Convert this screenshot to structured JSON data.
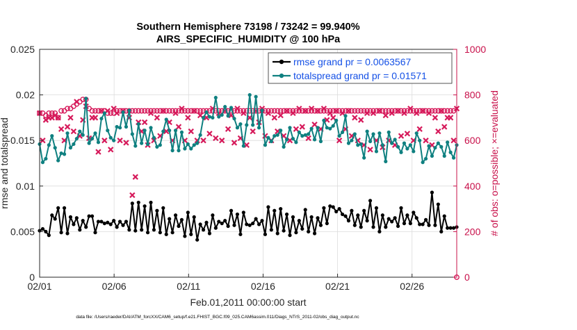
{
  "chart_data": {
    "type": "line",
    "title_line1": "Southern Hemisphere 73198 / 73242 = 99.940%",
    "title_line2": "AIRS_SPECIFIC_HUMIDITY @ 100 hPa",
    "xlabel": "Feb.01,2011 00:00:00 start",
    "ylabel_left": "rmse and totalspread",
    "ylabel_right": "# of obs: o=possible; ×=evaluated",
    "footer": "data file: /Users/raeder/DAI/ATM_forcXX/CAM6_setup/f.e21.FHIST_BGC.f09_025.CAM6assim.011/Diags_NTrS_2011-02/obs_diag_output.nc",
    "x_ticks": [
      "02/01",
      "02/06",
      "02/11",
      "02/16",
      "02/21",
      "02/26"
    ],
    "x_tick_days": [
      0,
      5,
      10,
      15,
      20,
      25
    ],
    "xlim": [
      0,
      28
    ],
    "y_left_ticks": [
      "0",
      "0.005",
      "0.01",
      "0.015",
      "0.02",
      "0.025"
    ],
    "ylim_left": [
      0,
      0.025
    ],
    "y_right_ticks": [
      "0",
      "200",
      "400",
      "600",
      "800",
      "1000"
    ],
    "ylim_right": [
      0,
      1000
    ],
    "grid": true,
    "legend_position": "top-right",
    "colors": {
      "rmse": "#000000",
      "spread": "#0f8080",
      "obs": "#d6195a",
      "right_axis": "#c8104a",
      "legend_text": "#1450e6"
    },
    "series": [
      {
        "name": "rmse",
        "legend": "rmse grand pr = 0.0063567",
        "values": [
          0.0051,
          0.0053,
          0.005,
          0.0046,
          0.0068,
          0.0064,
          0.0076,
          0.0049,
          0.0076,
          0.0048,
          0.0066,
          0.0058,
          0.0065,
          0.0052,
          0.0062,
          0.0055,
          0.0067,
          0.0067,
          0.0049,
          0.0061,
          0.0061,
          0.0059,
          0.006,
          0.0058,
          0.0062,
          0.0055,
          0.0061,
          0.0057,
          0.0061,
          0.0052,
          0.0081,
          0.0051,
          0.0082,
          0.0052,
          0.0078,
          0.0049,
          0.0082,
          0.0052,
          0.0073,
          0.0049,
          0.0076,
          0.0047,
          0.0064,
          0.0049,
          0.0068,
          0.0056,
          0.0063,
          0.0045,
          0.0071,
          0.0047,
          0.0066,
          0.0041,
          0.0058,
          0.0052,
          0.006,
          0.0048,
          0.0068,
          0.0054,
          0.0061,
          0.0059,
          0.0062,
          0.0056,
          0.0073,
          0.0057,
          0.0069,
          0.0047,
          0.0071,
          0.0058,
          0.0057,
          0.0059,
          0.0064,
          0.0058,
          0.0062,
          0.0047,
          0.0077,
          0.0052,
          0.0073,
          0.0048,
          0.0075,
          0.0051,
          0.0069,
          0.0046,
          0.0066,
          0.0049,
          0.0062,
          0.0053,
          0.0074,
          0.005,
          0.0066,
          0.0048,
          0.0065,
          0.0057,
          0.0076,
          0.0059,
          0.0078,
          0.0077,
          0.0072,
          0.0075,
          0.0069,
          0.0067,
          0.0062,
          0.0073,
          0.0057,
          0.0068,
          0.0055,
          0.0073,
          0.0062,
          0.0084,
          0.0055,
          0.0076,
          0.005,
          0.0068,
          0.0055,
          0.0064,
          0.0061,
          0.0065,
          0.0056,
          0.0076,
          0.0059,
          0.0068,
          0.0059,
          0.0071,
          0.0065,
          0.0058,
          0.0058,
          0.0063,
          0.0057,
          0.0093,
          0.0057,
          0.008,
          0.005,
          0.0067,
          0.0054,
          0.0054,
          0.0054,
          0.0055
        ]
      },
      {
        "name": "totalspread",
        "legend": "totalspread grand pr = 0.01571",
        "values": [
          0.0146,
          0.0126,
          0.013,
          0.0145,
          0.0155,
          0.0142,
          0.0128,
          0.0136,
          0.0135,
          0.0158,
          0.0142,
          0.0146,
          0.0152,
          0.016,
          0.0156,
          0.0196,
          0.0147,
          0.0152,
          0.0158,
          0.0148,
          0.0174,
          0.018,
          0.0161,
          0.0153,
          0.015,
          0.0165,
          0.0164,
          0.0181,
          0.0165,
          0.0183,
          0.0157,
          0.0144,
          0.0168,
          0.0147,
          0.0161,
          0.0146,
          0.0164,
          0.0153,
          0.0143,
          0.0145,
          0.016,
          0.0173,
          0.0161,
          0.0139,
          0.0161,
          0.0139,
          0.0159,
          0.0141,
          0.0146,
          0.0141,
          0.0145,
          0.0147,
          0.0156,
          0.0175,
          0.0181,
          0.0176,
          0.0175,
          0.0197,
          0.0176,
          0.0178,
          0.0187,
          0.0177,
          0.0186,
          0.0174,
          0.0164,
          0.0168,
          0.0144,
          0.0167,
          0.02,
          0.0167,
          0.0198,
          0.0164,
          0.0183,
          0.0145,
          0.0153,
          0.0149,
          0.0155,
          0.0156,
          0.0161,
          0.0143,
          0.0151,
          0.0164,
          0.0152,
          0.0148,
          0.0159,
          0.0155,
          0.0156,
          0.0157,
          0.0163,
          0.0151,
          0.0164,
          0.0149,
          0.0172,
          0.0164,
          0.0163,
          0.0166,
          0.0172,
          0.0155,
          0.0159,
          0.0177,
          0.0147,
          0.015,
          0.0157,
          0.0145,
          0.0146,
          0.0131,
          0.016,
          0.0149,
          0.0157,
          0.0138,
          0.0158,
          0.0145,
          0.0127,
          0.0159,
          0.0147,
          0.0151,
          0.0143,
          0.0137,
          0.0147,
          0.0141,
          0.0145,
          0.0138,
          0.0158,
          0.015,
          0.0126,
          0.013,
          0.0144,
          0.0133,
          0.0142,
          0.0147,
          0.0143,
          0.0133,
          0.0148,
          0.0137,
          0.0131,
          0.0145
        ]
      }
    ],
    "obs_possible": {
      "name": "# of obs possible",
      "values": [
        720,
        720,
        710,
        720,
        720,
        720,
        700,
        730,
        730,
        740,
        740,
        750,
        760,
        770,
        780,
        780,
        740,
        730,
        730,
        730,
        730,
        730,
        720,
        720,
        720,
        730,
        730,
        730,
        730,
        730,
        730,
        730,
        730,
        730,
        730,
        730,
        730,
        730,
        730,
        730,
        730,
        730,
        730,
        730,
        730,
        730,
        730,
        730,
        730,
        730,
        730,
        730,
        730,
        730,
        730,
        730,
        730,
        730,
        730,
        730,
        730,
        730,
        730,
        730,
        730,
        730,
        730,
        730,
        730,
        730,
        730,
        730,
        730,
        730,
        730,
        730,
        730,
        730,
        730,
        730,
        730,
        730,
        730,
        730,
        730,
        730,
        730,
        730,
        730,
        730,
        730,
        730,
        730,
        730,
        730,
        730,
        730,
        730,
        730,
        730,
        730,
        730,
        730,
        730,
        730,
        730,
        730,
        730,
        730,
        730,
        730,
        730,
        730,
        730,
        730,
        730,
        730,
        730,
        730,
        730,
        730,
        730,
        730,
        730,
        730,
        730,
        730,
        730,
        730,
        730,
        730,
        730,
        730,
        730,
        730,
        0
      ]
    },
    "obs_evaluated": {
      "name": "# of obs evaluated",
      "values": [
        720,
        600,
        690,
        700,
        700,
        710,
        700,
        650,
        600,
        660,
        700,
        640,
        770,
        620,
        690,
        750,
        610,
        700,
        700,
        550,
        730,
        600,
        730,
        560,
        740,
        720,
        600,
        730,
        590,
        700,
        360,
        440,
        680,
        640,
        680,
        580,
        720,
        600,
        700,
        620,
        730,
        640,
        680,
        600,
        720,
        660,
        740,
        600,
        700,
        640,
        730,
        600,
        710,
        600,
        700,
        630,
        740,
        610,
        720,
        600,
        730,
        650,
        710,
        590,
        740,
        610,
        720,
        580,
        700,
        640,
        730,
        680,
        740,
        620,
        720,
        600,
        700,
        640,
        710,
        620,
        730,
        600,
        720,
        650,
        740,
        660,
        730,
        610,
        740,
        670,
        730,
        650,
        740,
        690,
        720,
        700,
        730,
        600,
        720,
        650,
        730,
        620,
        700,
        600,
        690,
        580,
        720,
        560,
        720,
        600,
        730,
        570,
        710,
        600,
        720,
        580,
        730,
        620,
        720,
        630,
        740,
        600,
        720,
        650,
        730,
        600,
        720,
        580,
        700,
        640,
        730,
        660,
        700,
        700,
        600,
        740
      ]
    }
  }
}
